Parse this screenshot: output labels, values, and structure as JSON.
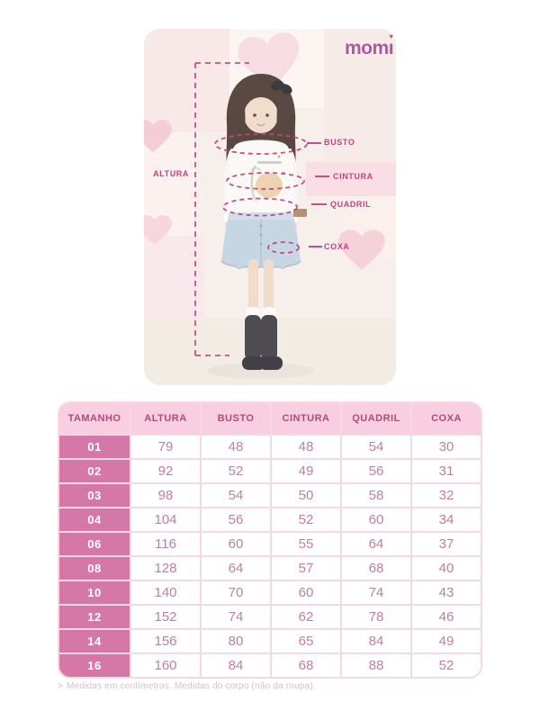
{
  "brand": {
    "name_part1": "mom",
    "name_part2": "ı",
    "heart_dot": "♥",
    "logo_color": "#a85b9f"
  },
  "measurements": {
    "altura": "ALTURA",
    "busto": "BUSTO",
    "cintura": "CINTURA",
    "quadril": "QUADRIL",
    "coxa": "COXA"
  },
  "table": {
    "headers": [
      "TAMANHO",
      "ALTURA",
      "BUSTO",
      "CINTURA",
      "QUADRIL",
      "COXA"
    ],
    "rows": [
      {
        "size": "01",
        "values": [
          "79",
          "48",
          "48",
          "54",
          "30"
        ]
      },
      {
        "size": "02",
        "values": [
          "92",
          "52",
          "49",
          "56",
          "31"
        ]
      },
      {
        "size": "03",
        "values": [
          "98",
          "54",
          "50",
          "58",
          "32"
        ]
      },
      {
        "size": "04",
        "values": [
          "104",
          "56",
          "52",
          "60",
          "34"
        ]
      },
      {
        "size": "06",
        "values": [
          "116",
          "60",
          "55",
          "64",
          "37"
        ]
      },
      {
        "size": "08",
        "values": [
          "128",
          "64",
          "57",
          "68",
          "40"
        ]
      },
      {
        "size": "10",
        "values": [
          "140",
          "70",
          "60",
          "74",
          "43"
        ]
      },
      {
        "size": "12",
        "values": [
          "152",
          "74",
          "62",
          "78",
          "46"
        ]
      },
      {
        "size": "14",
        "values": [
          "156",
          "80",
          "65",
          "84",
          "49"
        ]
      },
      {
        "size": "16",
        "values": [
          "160",
          "84",
          "68",
          "88",
          "52"
        ]
      }
    ],
    "unit_note": "centímetros"
  },
  "footer": {
    "prefix": ">",
    "note": "Medidas em centímetros. Medidas do corpo (não da roupa)."
  },
  "colors": {
    "accent": "#c6417f",
    "table_header_bg": "#f9cee1",
    "table_header_text": "#b04a7d",
    "size_column_bg": "#d577a7",
    "value_text": "#bf7ea2",
    "grid_line": "#f5d8e5"
  }
}
